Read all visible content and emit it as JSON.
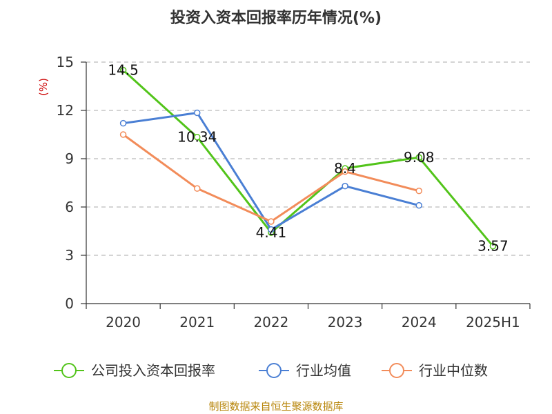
{
  "chart_data": {
    "type": "line",
    "title": "投资入资本回报率历年情况(%)",
    "ylabel": "(%)",
    "xlabel": "",
    "categories": [
      "2020",
      "2021",
      "2022",
      "2023",
      "2024",
      "2025H1"
    ],
    "ylim": [
      0,
      15
    ],
    "yticks": [
      0,
      3,
      6,
      9,
      12,
      15
    ],
    "grid": true,
    "legend_position": "bottom",
    "series": [
      {
        "name": "公司投入资本回报率",
        "color": "#52c41a",
        "values": [
          14.5,
          10.34,
          4.41,
          8.4,
          9.08,
          3.57
        ],
        "labels": [
          "14.5",
          "10.34",
          "4.41",
          "8.4",
          "9.08",
          "3.57"
        ]
      },
      {
        "name": "行业均值",
        "color": "#4a7fd4",
        "values": [
          11.2,
          11.85,
          4.6,
          7.3,
          6.1,
          null
        ]
      },
      {
        "name": "行业中位数",
        "color": "#f28c5a",
        "values": [
          10.5,
          7.15,
          5.1,
          8.2,
          7.0,
          null
        ]
      }
    ],
    "source": "制图数据来自恒生聚源数据库"
  }
}
